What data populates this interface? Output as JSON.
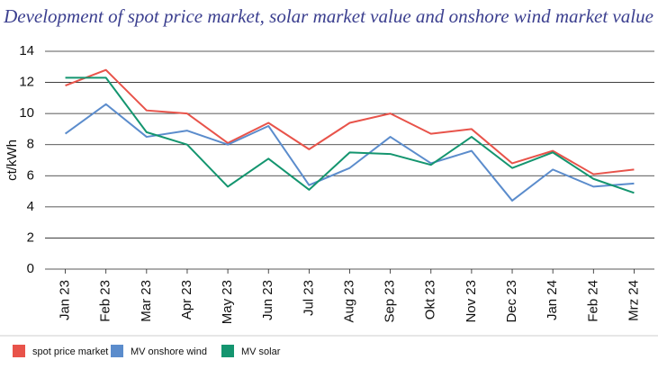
{
  "chart_data": {
    "type": "line",
    "title": "Development of spot price market, solar market value and onshore wind market value",
    "y_label": "ct/kWh",
    "categories": [
      "Jan 23",
      "Feb 23",
      "Mar 23",
      "Apr 23",
      "May 23",
      "Jun 23",
      "Jul 23",
      "Aug 23",
      "Sep 23",
      "Okt 23",
      "Nov 23",
      "Dec 23",
      "Jan 24",
      "Feb 24",
      "Mrz 24"
    ],
    "series": [
      {
        "name": "spot price market",
        "color": "#e8534a",
        "values": [
          11.8,
          12.8,
          10.2,
          10.0,
          8.1,
          9.4,
          7.7,
          9.4,
          10.0,
          8.7,
          9.0,
          6.8,
          7.6,
          6.1,
          6.4
        ]
      },
      {
        "name": "MV onshore wind",
        "color": "#5b8ccc",
        "values": [
          8.7,
          10.6,
          8.5,
          8.9,
          8.0,
          9.2,
          5.4,
          6.5,
          8.5,
          6.8,
          7.6,
          4.4,
          6.4,
          5.3,
          5.5
        ]
      },
      {
        "name": "MV solar",
        "color": "#14956f",
        "values": [
          12.3,
          12.3,
          8.8,
          8.0,
          5.3,
          7.1,
          5.1,
          7.5,
          7.4,
          6.7,
          8.5,
          6.5,
          7.5,
          5.8,
          4.9
        ]
      }
    ],
    "ylim": [
      0,
      14
    ],
    "yticks": [
      0,
      2,
      4,
      6,
      8,
      10,
      12,
      14
    ],
    "grid": true
  }
}
